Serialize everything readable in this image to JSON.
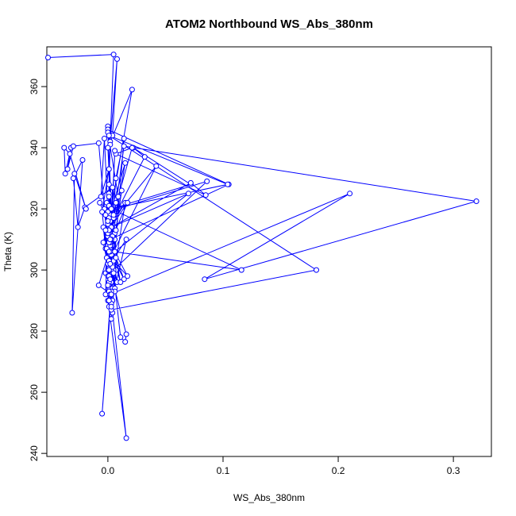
{
  "chart_data": {
    "type": "line",
    "title": "ATOM2 Northbound WS_Abs_380nm",
    "xlabel": "WS_Abs_380nm",
    "ylabel": "Theta (K)",
    "xlim": [
      -0.053,
      0.333
    ],
    "ylim": [
      239,
      373
    ],
    "x_ticks": [
      0.0,
      0.1,
      0.2,
      0.3
    ],
    "x_tick_labels": [
      "0.0",
      "0.1",
      "0.2",
      "0.3"
    ],
    "y_ticks": [
      240,
      260,
      280,
      300,
      320,
      340,
      360
    ],
    "y_tick_labels": [
      "240",
      "260",
      "280",
      "300",
      "320",
      "340",
      "360"
    ],
    "grid": false,
    "color": "#0000ff",
    "marker": "open-circle",
    "series": [
      {
        "x": [
          -0.052,
          0.005,
          0.002,
          0.008,
          0.004,
          0.0,
          0.002,
          0.001,
          0.0,
          0.003,
          -0.001,
          0.001,
          0.002,
          -0.003,
          0.001,
          0.003,
          0.002,
          0.0,
          0.001,
          0.003,
          -0.002,
          0.0,
          0.004,
          0.001,
          0.002,
          0.0,
          0.016,
          -0.004,
          0.003,
          0.002,
          0.001,
          0.004,
          0.003,
          0.007,
          0.002,
          0.006,
          0.004,
          0.011,
          0.015,
          0.016,
          -0.001,
          0.002,
          0.001,
          -0.002,
          0.004,
          -0.004,
          0.003,
          0.021,
          0.0,
          0.004,
          0.002,
          0.105,
          0.0,
          0.002,
          0.001,
          0.001,
          0.015,
          0.002,
          0.001,
          -0.002,
          0.006,
          0.004,
          -0.005,
          0.014,
          0.007,
          0.001,
          0.009,
          0.0,
          0.005,
          0.042,
          0.005,
          0.032,
          0.022,
          0.072,
          0.003,
          0.005,
          0.086,
          0.0,
          0.003,
          0.003,
          0.014,
          0.003,
          0.017,
          0.005,
          0.006,
          0.016,
          0.002,
          -0.003,
          -0.006,
          0.001,
          -0.005,
          0.0,
          0.004,
          0.0,
          0.001,
          0.006,
          0.003,
          0.001,
          0.001,
          0.0,
          0.002,
          0.002,
          0.21,
          0.084,
          0.32,
          0.014,
          0.0,
          0.015,
          0.001,
          0.003,
          0.003,
          0.181,
          0.001,
          0.104,
          0.003,
          0.116,
          0.006,
          0.07,
          0.003,
          0.072,
          0.085,
          0.007,
          0.021,
          0.0,
          0.003,
          -0.002,
          0.002,
          0.001,
          0.0,
          0.003,
          0.004,
          0.008,
          0.002,
          0.017,
          0.001,
          0.002,
          0.005,
          0.007,
          0.012,
          0.001,
          0.006,
          0.003,
          0.007,
          -0.001,
          0.001,
          0.007,
          0.011,
          0.001,
          0.002,
          0.004,
          -0.02,
          -0.026,
          -0.03,
          -0.022,
          -0.031,
          -0.029,
          -0.019,
          -0.033,
          -0.038,
          -0.037,
          -0.032,
          -0.035,
          -0.03,
          -0.008,
          0.001,
          0.0,
          0.002,
          0.003,
          -0.008,
          0.001,
          -0.002,
          0.002,
          0.001,
          0.0,
          -0.007,
          0.005,
          0.002,
          0.0
        ],
        "y": [
          369.5,
          370.5,
          342.0,
          369.0,
          344.0,
          347.0,
          341.0,
          328.0,
          313.0,
          290.0,
          322.0,
          316.0,
          305.0,
          320.0,
          310.0,
          296.0,
          300.0,
          318.0,
          325.0,
          306.0,
          299.0,
          311.0,
          286.0,
          314.0,
          307.0,
          290.0,
          245.0,
          314.0,
          302.0,
          318.0,
          295.0,
          290.0,
          284.0,
          300.0,
          294.0,
          310.0,
          302.0,
          278.0,
          276.5,
          279.0,
          304.0,
          312.0,
          321.0,
          307.0,
          294.0,
          309.0,
          320.0,
          359.0,
          340.0,
          308.0,
          310.0,
          328.0,
          346.0,
          316.0,
          301.0,
          288.0,
          322.0,
          314.0,
          324.0,
          292.0,
          312.0,
          299.0,
          253.0,
          343.0,
          330.0,
          300.0,
          324.0,
          345.0,
          306.0,
          334.0,
          317.0,
          337.0,
          340.0,
          328.0,
          320.0,
          300.0,
          329.0,
          319.0,
          310.0,
          305.0,
          297.0,
          308.0,
          298.0,
          303.0,
          294.0,
          310.0,
          302.0,
          343.0,
          324.0,
          333.0,
          319.0,
          302.0,
          311.0,
          298.0,
          312.0,
          293.0,
          289.0,
          303.0,
          290.0,
          308.0,
          300.0,
          292.0,
          325.0,
          297.0,
          322.5,
          340.5,
          302.0,
          335.0,
          317.0,
          293.0,
          287.0,
          300.0,
          344.0,
          328.0,
          320.0,
          300.0,
          306.0,
          325.0,
          314.0,
          328.5,
          324.5,
          338.0,
          340.0,
          312.0,
          300.0,
          318.0,
          308.0,
          296.0,
          315.0,
          288.0,
          301.0,
          296.0,
          309.0,
          322.0,
          313.0,
          306.0,
          299.0,
          313.0,
          326.0,
          298.0,
          339.0,
          310.0,
          322.0,
          307.0,
          293.0,
          304.0,
          296.0,
          309.0,
          292.0,
          327.0,
          320.5,
          314.0,
          330.0,
          336.0,
          286.0,
          331.5,
          320.0,
          338.0,
          340.0,
          331.5,
          340.0,
          333.0,
          340.5,
          341.5,
          303.0,
          300.0,
          310.0,
          292.0,
          295.0,
          306.0,
          313.0,
          297.0,
          300.0,
          316.0,
          322.0,
          318.0,
          302.0,
          295.0
        ]
      }
    ]
  }
}
